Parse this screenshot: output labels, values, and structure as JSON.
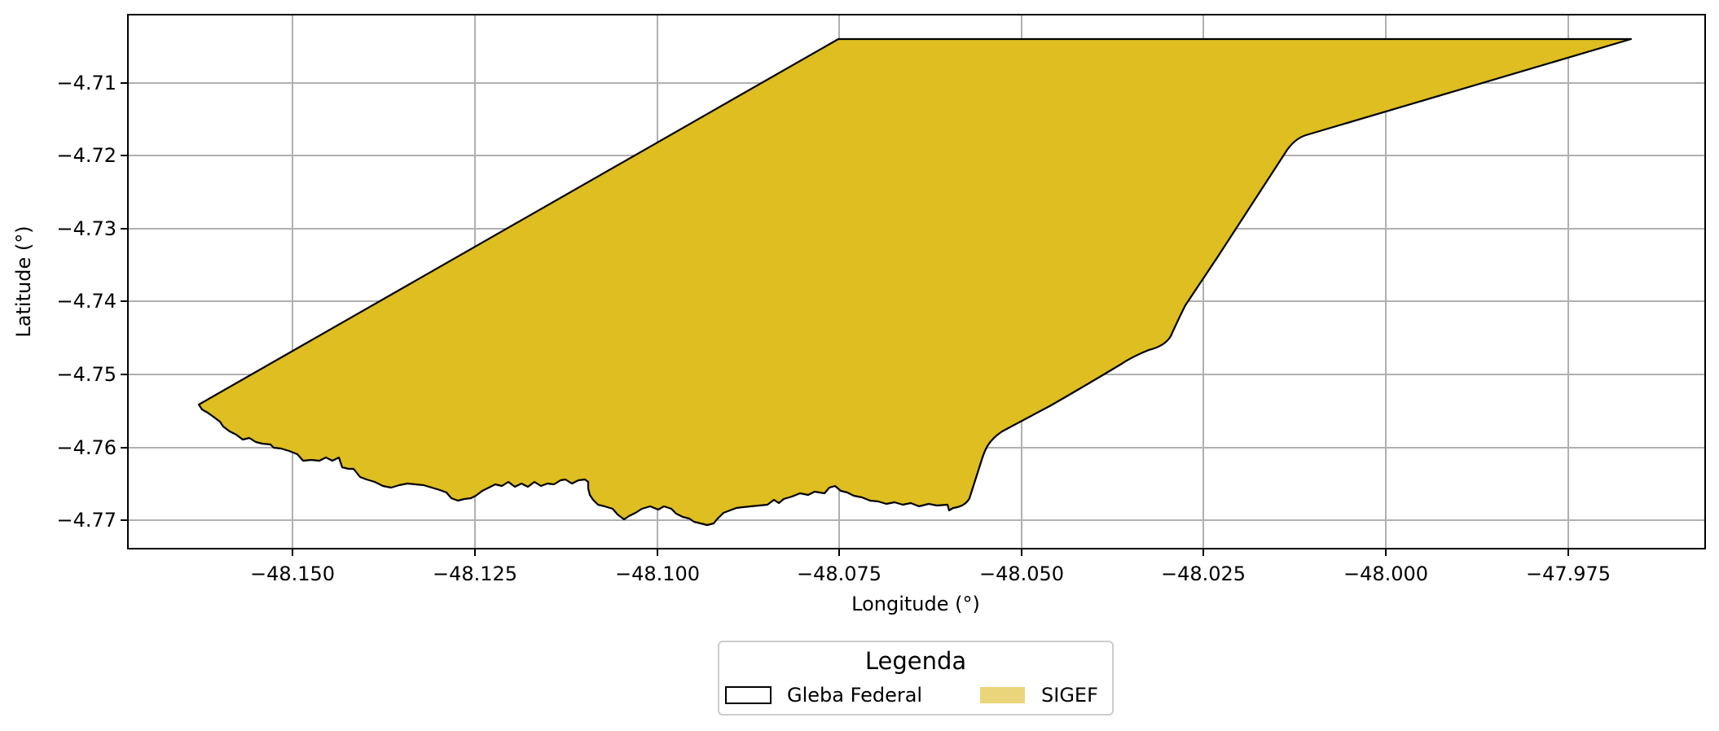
{
  "map": {
    "xlabel": "Longitude (°)",
    "ylabel": "Latitude (°)",
    "x_ticks": [
      "−48.150",
      "−48.125",
      "−48.100",
      "−48.075",
      "−48.050",
      "−48.025",
      "−48.000",
      "−47.975"
    ],
    "y_ticks": [
      "−4.71",
      "−4.72",
      "−4.73",
      "−4.74",
      "−4.75",
      "−4.76",
      "−4.77"
    ],
    "grid": true,
    "legend": {
      "title": "Legenda",
      "placement": "bottom-center",
      "entries": [
        {
          "label": "Gleba Federal",
          "style": "outline",
          "color": "#000000"
        },
        {
          "label": "SIGEF",
          "style": "fill",
          "color": "#ead57a"
        }
      ]
    },
    "colors": {
      "polygon_fill": "#debe20",
      "polygon_edge": "#000000",
      "grid": "#b0b0b0"
    }
  }
}
